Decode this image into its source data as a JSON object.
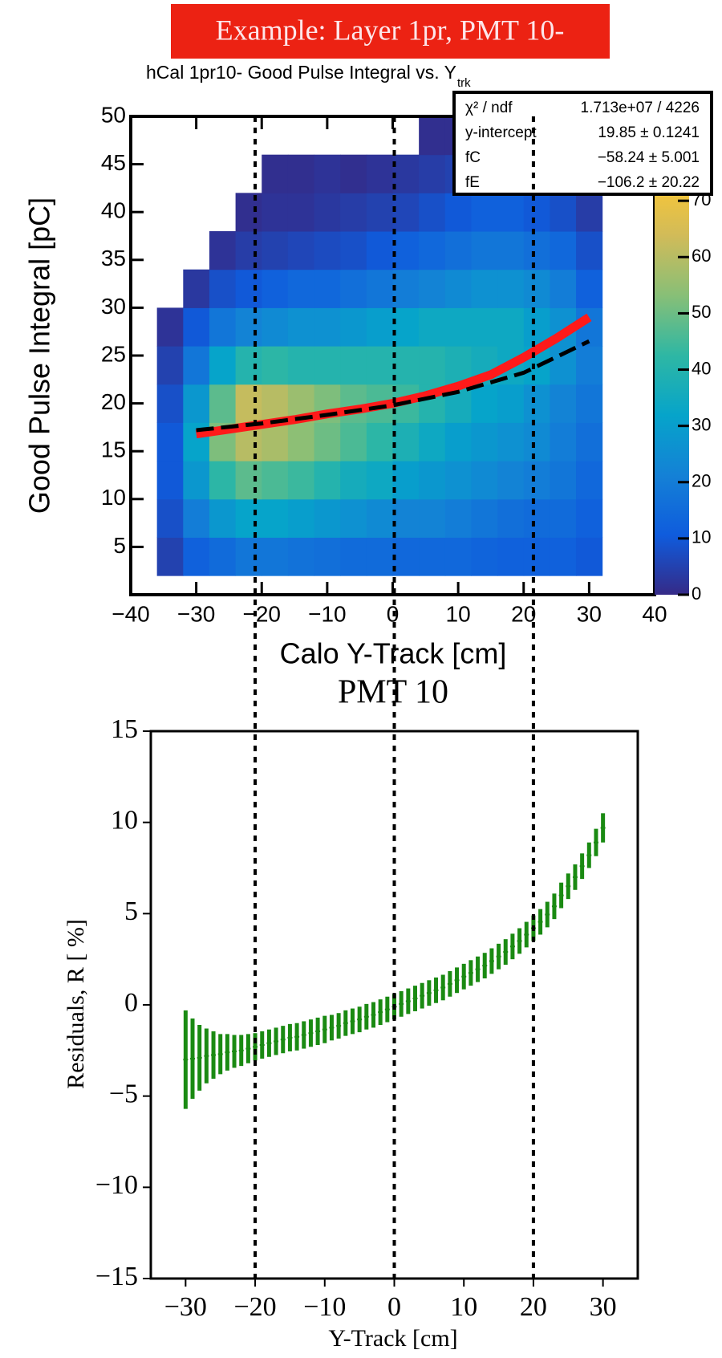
{
  "header": "Example: Layer 1pr, PMT 10-",
  "chart_data": [
    {
      "type": "heatmap",
      "title": "hCal 1pr10- Good Pulse Integral vs. Y",
      "title_subscript": "trk",
      "x_label": "Calo Y-Track [cm]",
      "y_label": "Good Pulse Integral [pC]",
      "xlim": [
        -40,
        40
      ],
      "xticks": [
        {
          "value": -40,
          "label": "−40"
        },
        {
          "value": -30,
          "label": "−30"
        },
        {
          "value": -20,
          "label": "−20"
        },
        {
          "value": -10,
          "label": "−10"
        },
        0,
        10,
        20,
        30,
        40
      ],
      "ylim": [
        0,
        50
      ],
      "yticks": [
        5,
        10,
        15,
        20,
        25,
        30,
        35,
        40,
        45,
        50
      ],
      "x_bins": [
        -36,
        -32,
        -28,
        -24,
        -20,
        -16,
        -12,
        -8,
        -4,
        0,
        4,
        8,
        12,
        16,
        20,
        24,
        28,
        32
      ],
      "y_bins": [
        2,
        6,
        10,
        14,
        18,
        22,
        26,
        30,
        34,
        38,
        42,
        46,
        50
      ],
      "z": [
        [
          5,
          12,
          15,
          18,
          18,
          17,
          16,
          15,
          15,
          14,
          14,
          14,
          13,
          12,
          12,
          12,
          10
        ],
        [
          8,
          20,
          28,
          32,
          32,
          30,
          28,
          26,
          24,
          22,
          22,
          20,
          18,
          16,
          15,
          15,
          12
        ],
        [
          10,
          28,
          42,
          48,
          46,
          44,
          40,
          36,
          34,
          30,
          28,
          26,
          24,
          22,
          20,
          18,
          14
        ],
        [
          10,
          32,
          52,
          60,
          58,
          54,
          50,
          46,
          42,
          38,
          34,
          30,
          28,
          26,
          24,
          20,
          16
        ],
        [
          8,
          28,
          48,
          62,
          60,
          56,
          52,
          48,
          46,
          44,
          40,
          36,
          32,
          30,
          26,
          22,
          18
        ],
        [
          5,
          18,
          32,
          40,
          42,
          40,
          40,
          40,
          40,
          40,
          40,
          38,
          36,
          34,
          32,
          26,
          20
        ],
        [
          2,
          10,
          18,
          22,
          24,
          26,
          26,
          28,
          30,
          32,
          34,
          34,
          34,
          34,
          30,
          26,
          18
        ],
        [
          0,
          3,
          8,
          10,
          12,
          14,
          14,
          16,
          18,
          20,
          22,
          24,
          26,
          26,
          24,
          20,
          12
        ],
        [
          0,
          0,
          2,
          4,
          5,
          6,
          7,
          8,
          10,
          12,
          14,
          16,
          18,
          18,
          16,
          14,
          8
        ],
        [
          0,
          0,
          0,
          1,
          2,
          2,
          3,
          4,
          5,
          6,
          8,
          10,
          12,
          12,
          10,
          8,
          4
        ],
        [
          0,
          0,
          0,
          0,
          1,
          1,
          2,
          1,
          2,
          3,
          4,
          5,
          6,
          6,
          5,
          4,
          2
        ],
        [
          0,
          0,
          0,
          0,
          0,
          0,
          0,
          0,
          0,
          0,
          1,
          1,
          2,
          2,
          1,
          0,
          0
        ]
      ],
      "zlim": [
        0,
        85
      ],
      "zticks": [
        0,
        10,
        20,
        30,
        40,
        50,
        60,
        70
      ],
      "colormap": [
        "#352a87",
        "#0f5cdd",
        "#1481d6",
        "#06a4ca",
        "#2eb7a4",
        "#87bf77",
        "#d1bb59",
        "#fec832",
        "#f9fb0e"
      ],
      "lines": [
        {
          "color": "#ff1a1a",
          "style": "solid",
          "x": [
            -30,
            -25,
            -20,
            -15,
            -10,
            -5,
            0,
            5,
            10,
            15,
            20,
            25,
            30
          ],
          "values": [
            16.8,
            17.3,
            17.8,
            18.3,
            18.9,
            19.4,
            20.0,
            20.8,
            21.8,
            23.0,
            24.8,
            26.8,
            29.0
          ]
        },
        {
          "color": "#000000",
          "style": "dashed",
          "x": [
            -30,
            -20,
            -10,
            0,
            10,
            20,
            30
          ],
          "values": [
            17.2,
            17.9,
            18.8,
            19.8,
            21.2,
            23.2,
            26.5
          ]
        }
      ],
      "stats": [
        [
          "χ² / ndf",
          "1.713e+07 / 4226"
        ],
        [
          "y-intercept",
          "19.85 ± 0.1241"
        ],
        [
          "fC",
          "−58.24 ± 5.001"
        ],
        [
          "fE",
          "−106.2 ± 20.22"
        ]
      ]
    },
    {
      "type": "errorbar",
      "title": "PMT 10",
      "x_label": "Y-Track [cm]",
      "y_label": "Residuals, R [ %]",
      "xlim": [
        -35,
        35
      ],
      "xticks": [
        {
          "value": -30,
          "label": "−30"
        },
        {
          "value": -20,
          "label": "−20"
        },
        {
          "value": -10,
          "label": "−10"
        },
        0,
        10,
        20,
        30
      ],
      "ylim": [
        -15,
        15
      ],
      "yticks": [
        {
          "value": -15,
          "label": "−15"
        },
        {
          "value": -10,
          "label": "−10"
        },
        {
          "value": -5,
          "label": "−5"
        },
        0,
        5,
        10,
        15
      ],
      "vlines": [
        -20,
        0,
        20
      ],
      "series": [
        {
          "color": "#1a8a12",
          "x": [
            -30,
            -29,
            -28,
            -27,
            -26,
            -25,
            -24,
            -23,
            -22,
            -21,
            -20,
            -19,
            -18,
            -17,
            -16,
            -15,
            -14,
            -13,
            -12,
            -11,
            -10,
            -9,
            -8,
            -7,
            -6,
            -5,
            -4,
            -3,
            -2,
            -1,
            0,
            1,
            2,
            3,
            4,
            5,
            6,
            7,
            8,
            9,
            10,
            11,
            12,
            13,
            14,
            15,
            16,
            17,
            18,
            19,
            20,
            21,
            22,
            23,
            24,
            25,
            26,
            27,
            28,
            29,
            30
          ],
          "values": [
            -3.0,
            -2.95,
            -2.9,
            -2.8,
            -2.75,
            -2.7,
            -2.6,
            -2.55,
            -2.5,
            -2.4,
            -2.3,
            -2.2,
            -2.1,
            -2.0,
            -1.9,
            -1.8,
            -1.75,
            -1.65,
            -1.55,
            -1.45,
            -1.35,
            -1.25,
            -1.15,
            -1.0,
            -0.9,
            -0.8,
            -0.65,
            -0.55,
            -0.4,
            -0.25,
            -0.1,
            0.05,
            0.2,
            0.35,
            0.5,
            0.65,
            0.8,
            0.95,
            1.15,
            1.35,
            1.55,
            1.75,
            1.95,
            2.15,
            2.4,
            2.65,
            2.9,
            3.2,
            3.5,
            3.85,
            4.2,
            4.55,
            4.95,
            5.4,
            6.0,
            6.5,
            7.0,
            7.6,
            8.2,
            8.9,
            9.7
          ],
          "errors": [
            2.7,
            2.2,
            1.8,
            1.5,
            1.3,
            1.1,
            1.0,
            0.9,
            0.85,
            0.8,
            0.75,
            0.75,
            0.75,
            0.75,
            0.75,
            0.75,
            0.75,
            0.75,
            0.75,
            0.75,
            0.75,
            0.7,
            0.7,
            0.7,
            0.7,
            0.7,
            0.7,
            0.7,
            0.7,
            0.7,
            0.7,
            0.7,
            0.7,
            0.7,
            0.7,
            0.7,
            0.7,
            0.7,
            0.7,
            0.7,
            0.7,
            0.7,
            0.7,
            0.7,
            0.7,
            0.7,
            0.7,
            0.7,
            0.7,
            0.7,
            0.7,
            0.7,
            0.7,
            0.7,
            0.7,
            0.7,
            0.7,
            0.7,
            0.7,
            0.75,
            0.8
          ]
        }
      ]
    }
  ]
}
